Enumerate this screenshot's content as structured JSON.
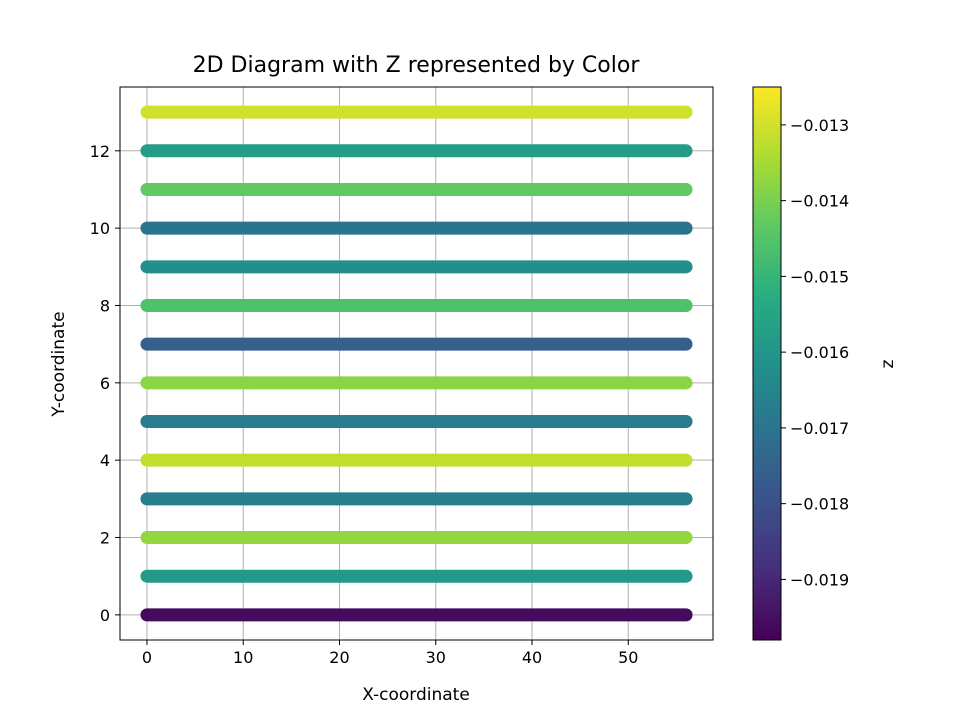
{
  "chart_data": {
    "type": "scatter",
    "title": "2D Diagram with Z represented by Color",
    "xlabel": "X-coordinate",
    "ylabel": "Y-coordinate",
    "colorbar_label": "z",
    "xlim": [
      -2.8,
      58.8
    ],
    "ylim": [
      -0.65,
      13.65
    ],
    "xticks": [
      0,
      10,
      20,
      30,
      40,
      50
    ],
    "yticks": [
      0,
      2,
      4,
      6,
      8,
      10,
      12
    ],
    "grid": true,
    "colormap": "viridis",
    "zlim": [
      -0.0198,
      -0.0125
    ],
    "colorbar_ticks": [
      -0.013,
      -0.014,
      -0.015,
      -0.016,
      -0.017,
      -0.018,
      -0.019
    ],
    "colorbar_tick_labels": [
      "−0.013",
      "−0.014",
      "−0.015",
      "−0.016",
      "−0.017",
      "−0.018",
      "−0.019"
    ],
    "x_range": [
      0,
      56
    ],
    "rows": [
      {
        "y": 0,
        "z": -0.0196
      },
      {
        "y": 1,
        "z": -0.0159
      },
      {
        "y": 2,
        "z": -0.0137
      },
      {
        "y": 3,
        "z": -0.0167
      },
      {
        "y": 4,
        "z": -0.0132
      },
      {
        "y": 5,
        "z": -0.0168
      },
      {
        "y": 6,
        "z": -0.0138
      },
      {
        "y": 7,
        "z": -0.0176
      },
      {
        "y": 8,
        "z": -0.0146
      },
      {
        "y": 9,
        "z": -0.0162
      },
      {
        "y": 10,
        "z": -0.017
      },
      {
        "y": 11,
        "z": -0.0143
      },
      {
        "y": 12,
        "z": -0.0158
      },
      {
        "y": 13,
        "z": -0.013
      }
    ]
  }
}
